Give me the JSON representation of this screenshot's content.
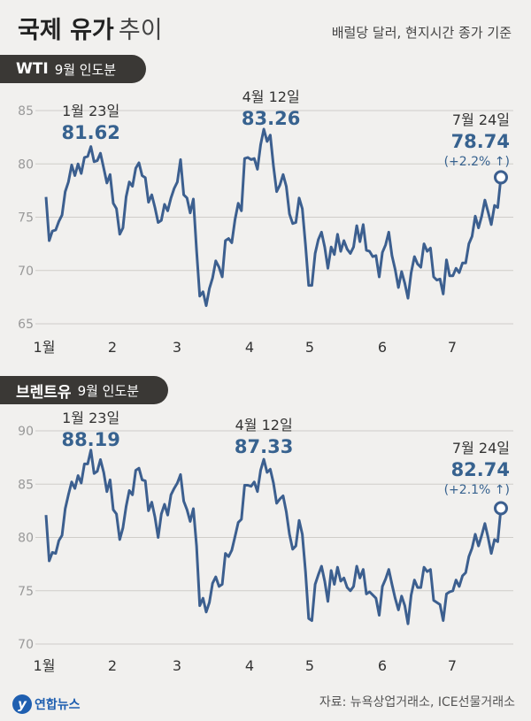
{
  "header": {
    "title_bold": "국제 유가",
    "title_light": "추이",
    "unit_note": "배럴당 달러, 현지시간 종가 기준"
  },
  "colors": {
    "line": "#3c5f8f",
    "accent_text": "#37628f",
    "grid": "#cfcdc9",
    "axis_text": "#999999"
  },
  "footer": {
    "source": "자료: 뉴욕상업거래소, ICE선물거래소",
    "logo_text": "연합뉴스",
    "logo_mark": "y"
  },
  "chart_data": [
    {
      "type": "line",
      "name": "WTI",
      "subtitle": "9월 인도분",
      "x_labels": [
        "1월",
        "2",
        "3",
        "4",
        "5",
        "6",
        "7"
      ],
      "ylim": [
        65,
        85
      ],
      "yticks": [
        65,
        70,
        75,
        80,
        85
      ],
      "grid": true,
      "values": [
        76.9,
        72.8,
        73.7,
        73.8,
        74.6,
        75.2,
        77.4,
        78.3,
        79.9,
        78.9,
        80.0,
        79.1,
        80.6,
        80.7,
        81.62,
        80.2,
        80.3,
        81.0,
        79.6,
        78.2,
        79.0,
        76.3,
        75.8,
        73.4,
        74.0,
        76.9,
        78.3,
        77.9,
        79.6,
        80.1,
        78.9,
        78.7,
        76.4,
        77.1,
        75.9,
        74.5,
        74.7,
        76.2,
        75.6,
        76.8,
        77.7,
        78.3,
        80.4,
        77.1,
        76.8,
        75.4,
        76.7,
        71.9,
        67.6,
        68.0,
        66.7,
        68.3,
        69.3,
        70.9,
        70.3,
        69.4,
        72.8,
        73.0,
        72.6,
        74.8,
        76.3,
        75.6,
        80.5,
        80.6,
        80.4,
        80.5,
        79.5,
        81.8,
        83.26,
        82.1,
        82.7,
        79.8,
        77.4,
        78.0,
        79.0,
        77.9,
        75.3,
        74.4,
        74.5,
        76.8,
        75.8,
        72.4,
        68.6,
        68.6,
        71.6,
        72.9,
        73.6,
        72.2,
        70.2,
        72.2,
        71.5,
        73.4,
        71.8,
        72.8,
        72.0,
        71.6,
        72.2,
        74.2,
        72.7,
        74.3,
        71.9,
        71.8,
        71.3,
        71.4,
        69.4,
        71.7,
        72.4,
        73.6,
        71.4,
        70.1,
        68.4,
        69.9,
        68.8,
        67.4,
        69.8,
        71.3,
        70.6,
        70.3,
        72.5,
        71.8,
        72.1,
        69.4,
        69.1,
        69.2,
        67.8,
        71.0,
        69.5,
        69.5,
        70.2,
        69.8,
        70.7,
        70.7,
        72.5,
        73.2,
        75.1,
        74.0,
        75.1,
        76.6,
        75.5,
        74.3,
        76.1,
        75.9,
        78.74
      ],
      "annotations": [
        {
          "date": "1월 23일",
          "value": "81.62"
        },
        {
          "date": "4월 12일",
          "value": "83.26"
        },
        {
          "date": "7월 24일",
          "value": "78.74",
          "change": "(+2.2% ↑)"
        }
      ]
    },
    {
      "type": "line",
      "name": "브렌트유",
      "subtitle": "9월 인도분",
      "x_labels": [
        "1월",
        "2",
        "3",
        "4",
        "5",
        "6",
        "7"
      ],
      "ylim": [
        70,
        90
      ],
      "yticks": [
        70,
        75,
        80,
        85,
        90
      ],
      "grid": true,
      "values": [
        82.1,
        77.8,
        78.6,
        78.5,
        79.7,
        80.2,
        82.7,
        84.0,
        85.2,
        84.6,
        85.8,
        85.1,
        86.9,
        86.9,
        88.19,
        86.0,
        86.2,
        87.3,
        86.1,
        84.3,
        85.4,
        82.6,
        82.2,
        79.8,
        80.9,
        82.9,
        84.4,
        84.0,
        86.3,
        86.5,
        85.4,
        85.3,
        82.5,
        83.3,
        81.9,
        80.0,
        82.2,
        83.1,
        82.1,
        84.0,
        84.6,
        85.1,
        85.9,
        83.4,
        82.6,
        81.5,
        82.7,
        79.2,
        73.6,
        74.3,
        73.0,
        73.9,
        75.7,
        76.3,
        75.4,
        75.6,
        78.5,
        78.2,
        78.8,
        80.1,
        81.4,
        81.7,
        84.9,
        84.9,
        84.8,
        85.2,
        84.3,
        86.3,
        87.33,
        86.1,
        86.4,
        85.1,
        83.2,
        83.6,
        83.9,
        82.4,
        80.3,
        78.9,
        79.2,
        81.6,
        80.3,
        76.8,
        72.4,
        72.2,
        75.6,
        76.5,
        77.3,
        75.9,
        74.0,
        76.9,
        75.6,
        77.2,
        75.9,
        76.2,
        75.3,
        75.0,
        75.4,
        77.3,
        76.2,
        77.0,
        74.7,
        74.9,
        74.6,
        74.3,
        72.7,
        75.4,
        76.1,
        77.0,
        75.6,
        74.3,
        73.2,
        74.5,
        73.6,
        71.9,
        74.6,
        76.0,
        75.3,
        75.3,
        77.2,
        76.8,
        77.0,
        74.1,
        73.9,
        73.7,
        72.2,
        74.7,
        74.9,
        75.0,
        76.0,
        75.4,
        76.4,
        76.7,
        78.2,
        79.0,
        80.3,
        79.2,
        80.2,
        81.3,
        80.0,
        78.5,
        79.8,
        79.6,
        82.74
      ],
      "annotations": [
        {
          "date": "1월 23일",
          "value": "88.19"
        },
        {
          "date": "4월 12일",
          "value": "87.33"
        },
        {
          "date": "7월 24일",
          "value": "82.74",
          "change": "(+2.1% ↑)"
        }
      ]
    }
  ]
}
